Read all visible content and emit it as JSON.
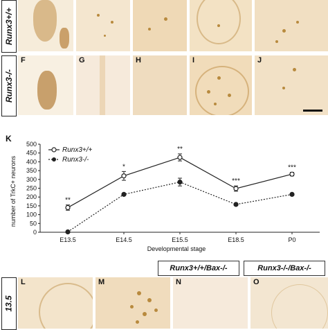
{
  "top_row": {
    "row_label": "Runx3+/+",
    "panels": [
      {
        "label": ""
      },
      {
        "label": ""
      },
      {
        "label": ""
      },
      {
        "label": ""
      },
      {
        "label": ""
      }
    ]
  },
  "middle_row": {
    "row_label": "Runx3-/-",
    "panels": [
      {
        "label": "F"
      },
      {
        "label": "G"
      },
      {
        "label": "H"
      },
      {
        "label": "I"
      },
      {
        "label": "J"
      }
    ]
  },
  "panel_K_label": "K",
  "bottom_section": {
    "header_left": "Runx3+/+/Bax-/-",
    "header_right": "Runx3-/-/Bax-/-",
    "row_label": "13.5",
    "panels": [
      {
        "label": "L"
      },
      {
        "label": "M"
      },
      {
        "label": "N"
      },
      {
        "label": "O"
      }
    ]
  },
  "colors": {
    "tissue_bg": "#f4e6cf",
    "stain": "#b88a3e",
    "line": "#222222"
  },
  "chart_data": {
    "type": "line",
    "ylabel": "number of TrkC+ neurons",
    "xlabel": "Developmental stage",
    "categories": [
      "E13.5",
      "E14.5",
      "E15.5",
      "E18.5",
      "P0"
    ],
    "ylim": [
      0,
      500
    ],
    "yticks": [
      0,
      50,
      100,
      150,
      200,
      250,
      300,
      350,
      400,
      450,
      500
    ],
    "legend_placement": "top-left",
    "series": [
      {
        "name": "Runx3+/+",
        "style": "solid-open-circle",
        "values": [
          140,
          320,
          425,
          248,
          330
        ],
        "errors": [
          15,
          25,
          20,
          15,
          10
        ],
        "significance": [
          "**",
          "*",
          "**",
          "***",
          "***"
        ]
      },
      {
        "name": "Runx3-/-",
        "style": "dotted-filled-circle",
        "values": [
          2,
          215,
          285,
          158,
          215
        ],
        "errors": [
          2,
          6,
          22,
          6,
          6
        ]
      }
    ]
  }
}
